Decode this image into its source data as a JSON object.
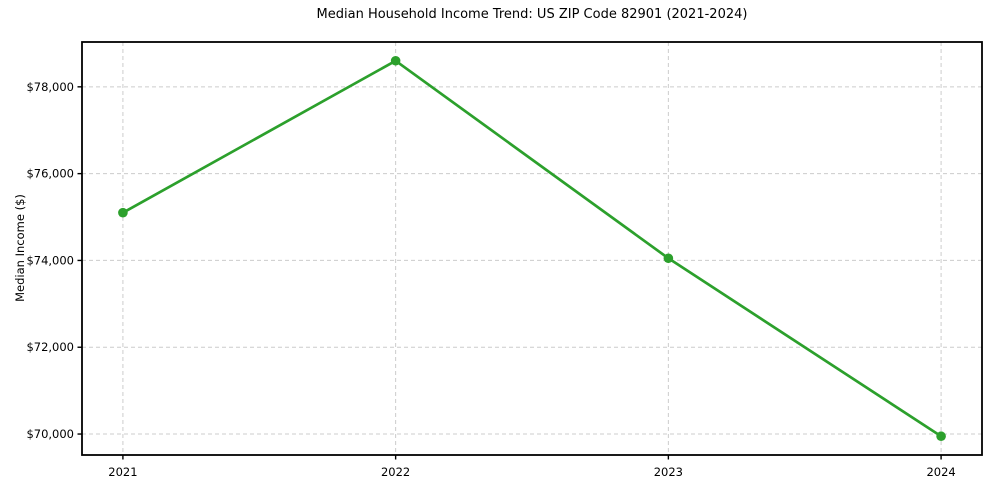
{
  "chart_data": {
    "type": "line",
    "title": "Median Household Income Trend: US ZIP Code 82901 (2021-2024)",
    "xlabel": "",
    "ylabel": "Median Income ($)",
    "x": [
      2021,
      2022,
      2023,
      2024
    ],
    "values": [
      75100,
      78600,
      74050,
      69950
    ],
    "xticks": [
      {
        "value": 2021,
        "label": "2021"
      },
      {
        "value": 2022,
        "label": "2022"
      },
      {
        "value": 2023,
        "label": "2023"
      },
      {
        "value": 2024,
        "label": "2024"
      }
    ],
    "yticks": [
      {
        "value": 70000,
        "label": "$70,000"
      },
      {
        "value": 72000,
        "label": "$72,000"
      },
      {
        "value": 74000,
        "label": "$74,000"
      },
      {
        "value": 76000,
        "label": "$76,000"
      },
      {
        "value": 78000,
        "label": "$78,000"
      }
    ],
    "xlim": [
      2020.85,
      2024.15
    ],
    "ylim": [
      69517,
      79033
    ],
    "grid": true,
    "grid_style": "dashed",
    "legend_position": "none",
    "marker": "circle",
    "colors": {
      "line": "#2ca02c",
      "grid": "#cccccc",
      "spine": "#000000",
      "text": "#000000",
      "background": "#ffffff"
    }
  }
}
